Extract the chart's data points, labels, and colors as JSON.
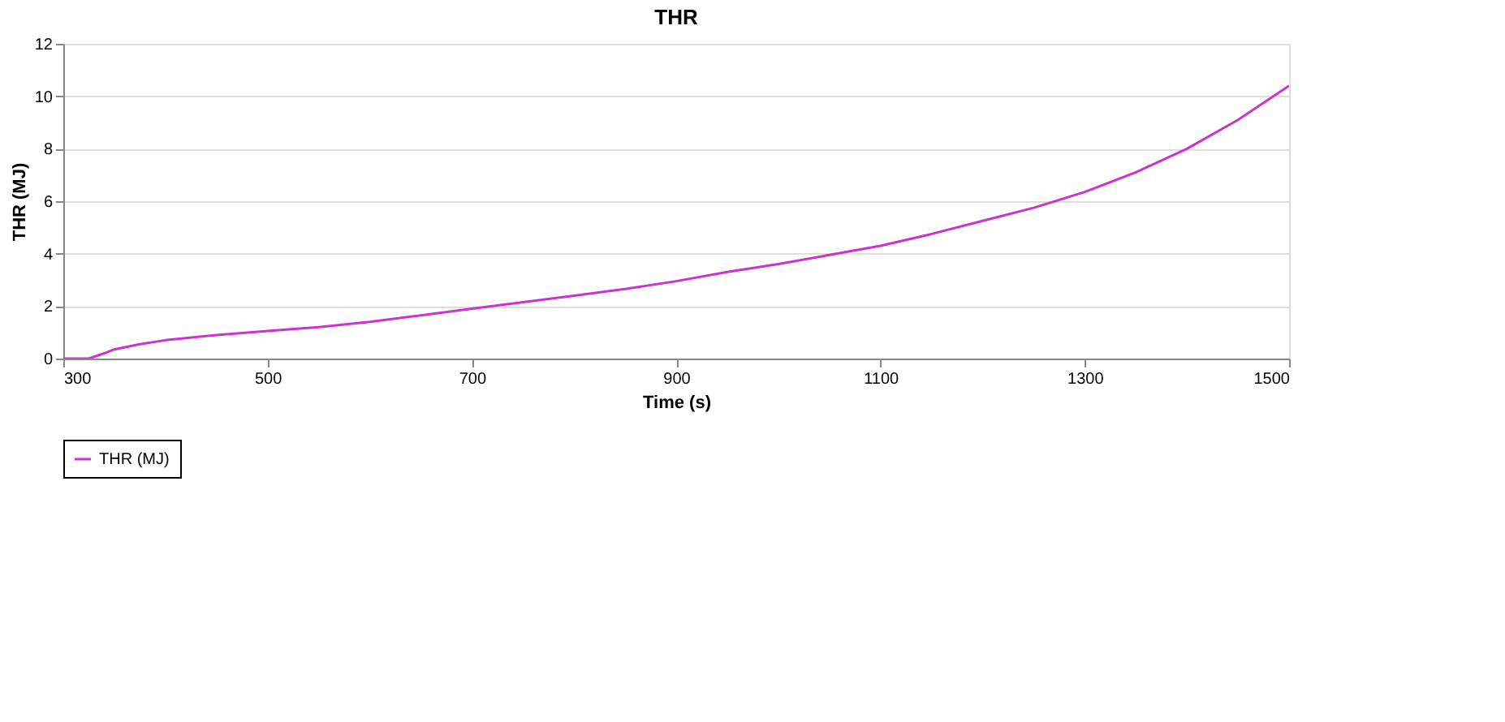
{
  "chart_data": {
    "type": "line",
    "title": "THR",
    "xlabel": "Time (s)",
    "ylabel": "THR (MJ)",
    "x": [
      300,
      325,
      340,
      350,
      375,
      400,
      450,
      500,
      550,
      600,
      650,
      700,
      750,
      800,
      850,
      900,
      950,
      1000,
      1050,
      1100,
      1150,
      1200,
      1250,
      1300,
      1350,
      1400,
      1450,
      1500
    ],
    "series": [
      {
        "name": "THR (MJ)",
        "color": "#cc33cc",
        "values": [
          0,
          0,
          0.2,
          0.35,
          0.55,
          0.7,
          0.9,
          1.05,
          1.2,
          1.4,
          1.65,
          1.9,
          2.15,
          2.4,
          2.65,
          2.95,
          3.3,
          3.6,
          3.95,
          4.3,
          4.75,
          5.25,
          5.75,
          6.35,
          7.1,
          8.0,
          9.1,
          10.4
        ]
      }
    ],
    "xlim": [
      300,
      1500
    ],
    "xticks": [
      300,
      500,
      700,
      900,
      1100,
      1300,
      1500
    ],
    "ylim": [
      0,
      12
    ],
    "yticks": [
      0,
      2,
      4,
      6,
      8,
      10,
      12
    ],
    "grid": "y",
    "legend": "bottom",
    "marker": "none",
    "line_style": "solid"
  }
}
